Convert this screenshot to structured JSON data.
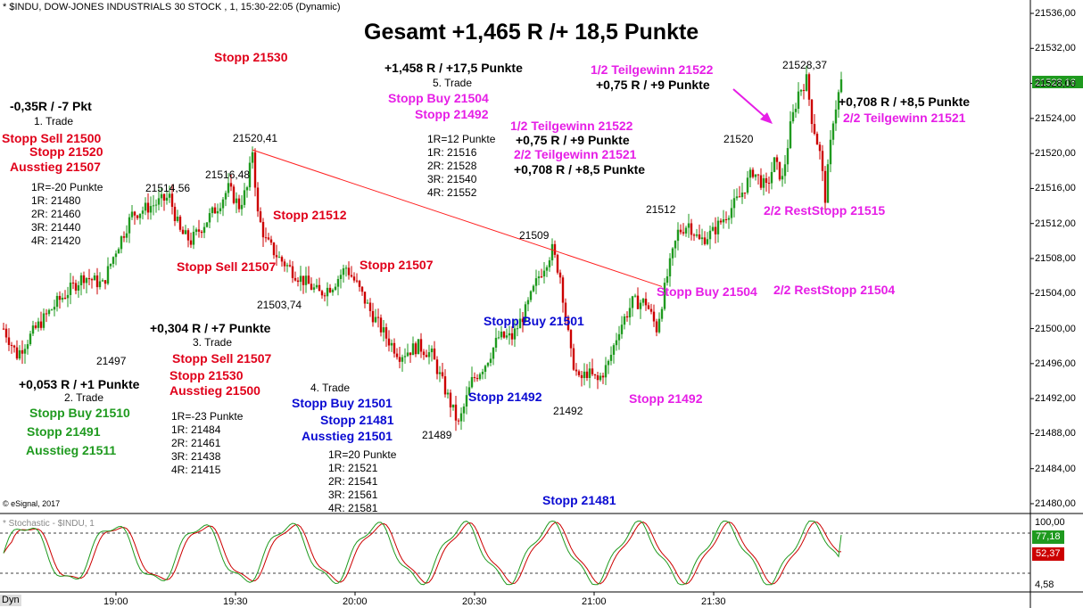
{
  "header": {
    "title": "* $INDU, DOW-JONES INDUSTRIALS 30 STOCK , 1, 15:30-22:05 (Dynamic)",
    "headline": "Gesamt +1,465 R /+ 18,5 Punkte",
    "copyright": "© eSignal, 2017",
    "stoch_title": "* Stochastic - $INDU, 1",
    "dyn_tab": "Dyn"
  },
  "colors": {
    "bull_candle": "#1f9a1f",
    "bear_candle": "#cc0000",
    "stoch_k": "#1f9a1f",
    "stoch_d": "#cc0000",
    "trendline": "#ff2020",
    "price_tag": "#1f9a1f",
    "stoch_k_tag": "#1f9a1f",
    "stoch_d_tag": "#cc0000",
    "arrow": "#e61ee6"
  },
  "chart_data": [
    {
      "type": "candlestick",
      "y_axis_ticks": [
        "21536,00",
        "21532,00",
        "21528,00",
        "21524,00",
        "21520,00",
        "21516,00",
        "21512,00",
        "21508,00",
        "21504,00",
        "21500,00",
        "21496,00",
        "21492,00",
        "21488,00",
        "21484,00",
        "21480,00"
      ],
      "ylim": [
        21479,
        21537
      ],
      "x_axis_ticks": [
        "19:00",
        "19:30",
        "20:00",
        "20:30",
        "21:00",
        "21:30"
      ],
      "last_price_label": "21528,16",
      "price_path": [
        [
          0,
          21500
        ],
        [
          5,
          21497
        ],
        [
          12,
          21500
        ],
        [
          20,
          21503
        ],
        [
          30,
          21506
        ],
        [
          37,
          21505
        ],
        [
          42,
          21509
        ],
        [
          48,
          21513
        ],
        [
          55,
          21514
        ],
        [
          62,
          21515
        ],
        [
          66,
          21511
        ],
        [
          70,
          21510
        ],
        [
          75,
          21512
        ],
        [
          80,
          21514
        ],
        [
          84,
          21516
        ],
        [
          88,
          21514
        ],
        [
          91,
          21516
        ],
        [
          93,
          21520.4
        ],
        [
          95,
          21513
        ],
        [
          98,
          21510
        ],
        [
          103,
          21508
        ],
        [
          110,
          21506
        ],
        [
          118,
          21504
        ],
        [
          123,
          21505
        ],
        [
          128,
          21507
        ],
        [
          132,
          21505
        ],
        [
          137,
          21502
        ],
        [
          143,
          21499
        ],
        [
          148,
          21497
        ],
        [
          155,
          21498
        ],
        [
          160,
          21497
        ],
        [
          165,
          21493
        ],
        [
          170,
          21489
        ],
        [
          175,
          21494
        ],
        [
          180,
          21496
        ],
        [
          185,
          21499
        ],
        [
          190,
          21499
        ],
        [
          195,
          21502
        ],
        [
          200,
          21506
        ],
        [
          205,
          21509
        ],
        [
          208,
          21506
        ],
        [
          212,
          21497
        ],
        [
          215,
          21494
        ],
        [
          218,
          21495
        ],
        [
          222,
          21494
        ],
        [
          226,
          21496
        ],
        [
          230,
          21500
        ],
        [
          235,
          21503
        ],
        [
          240,
          21503
        ],
        [
          244,
          21500
        ],
        [
          248,
          21506
        ],
        [
          252,
          21511
        ],
        [
          256,
          21512
        ],
        [
          260,
          21510
        ],
        [
          265,
          21511
        ],
        [
          270,
          21513
        ],
        [
          275,
          21515
        ],
        [
          280,
          21518
        ],
        [
          285,
          21516
        ],
        [
          288,
          21519
        ],
        [
          291,
          21517
        ],
        [
          294,
          21523
        ],
        [
          297,
          21527
        ],
        [
          300,
          21528.4
        ],
        [
          302,
          21524
        ],
        [
          305,
          21520
        ],
        [
          307,
          21515
        ],
        [
          310,
          21524
        ],
        [
          313,
          21528.2
        ]
      ],
      "trendline": {
        "from": [
          93,
          21520.41
        ],
        "to": [
          246,
          21504.8
        ]
      },
      "annotations": {
        "price_labels": [
          "21520,41",
          "21516,48",
          "21514,56",
          "21503,74",
          "21497",
          "21489",
          "21509",
          "21492",
          "21512",
          "21520",
          "21528,37"
        ]
      }
    },
    {
      "type": "line",
      "name": "Stochastic",
      "y_axis_ticks": [
        "100,00",
        "77,18",
        "52,37",
        "4,58"
      ],
      "ylim": [
        0,
        100
      ],
      "series": [
        {
          "name": "%K",
          "last_value": "77,18"
        },
        {
          "name": "%D",
          "last_value": "52,37"
        }
      ],
      "levels": [
        80,
        20
      ]
    }
  ],
  "notes": {
    "t1_result": "-0,35R / -7 Pkt",
    "t1_label": "1. Trade",
    "t1_stopp_sell": "Stopp Sell 21500",
    "t1_stopp": "Stopp 21520",
    "t1_ausstieg": "Ausstieg 21507",
    "t1_r1": "1R=-20 Punkte",
    "t1_r1v": "1R: 21480",
    "t1_r2": "2R: 21460",
    "t1_r3": "3R: 21440",
    "t1_r4": "4R: 21420",
    "t2_result": "+0,053 R / +1 Punkte",
    "t2_label": "2. Trade",
    "t2_stopp_buy": "Stopp Buy 21510",
    "t2_stopp": "Stopp 21491",
    "t2_ausstieg": "Ausstieg 21511",
    "t3_result": "+0,304 R / +7 Punkte",
    "t3_label": "3. Trade",
    "t3_stopp_sell": "Stopp Sell 21507",
    "t3_stopp": "Stopp 21530",
    "t3_ausstieg": "Ausstieg 21500",
    "t3_r1": "1R=-23 Punkte",
    "t3_r1v": "1R: 21484",
    "t3_r2": "2R: 21461",
    "t3_r3": "3R: 21438",
    "t3_r4": "4R: 21415",
    "t4_label": "4. Trade",
    "t4_stopp_buy": "Stopp Buy 21501",
    "t4_stopp": "Stopp 21481",
    "t4_ausstieg": "Ausstieg 21501",
    "t4_r1": "1R=20 Punkte",
    "t4_r1v": "1R: 21521",
    "t4_r2": "2R: 21541",
    "t4_r3": "3R: 21561",
    "t4_r4": "4R: 21581",
    "stopp_21530_top": "Stopp 21530",
    "stopp_21512": "Stopp 21512",
    "stopp_sell_21507": "Stopp Sell 21507",
    "stopp_21507": "Stopp 21507",
    "t5_result": "+1,458 R / +17,5 Punkte",
    "t5_label": "5. Trade",
    "t5_stopp_buy": "Stopp Buy 21504",
    "t5_stopp": "Stopp 21492",
    "t5_r1": "1R=12 Punkte",
    "t5_r1v": "1R: 21516",
    "t5_r2": "2R: 21528",
    "t5_r3": "3R: 21540",
    "t5_r4": "4R: 21552",
    "tg1": "1/2 Teilgewinn 21522",
    "tg1_res": "+0,75 R / +9 Punkte",
    "tg2": "2/2 Teilgewinn 21521",
    "tg2_res": "+0,708 R / +8,5 Punkte",
    "stopp_buy_21501_mid": "Stopp Buy 21501",
    "stopp_21492_mid": "Stopp 21492",
    "stopp_21481_bottom": "Stopp 21481",
    "stopp_buy_21504_right": "Stopp Buy 21504",
    "stopp_21492_right": "Stopp 21492",
    "reststopp_21504": "2/2 RestStopp 21504",
    "reststopp_21515": "2/2 RestStopp 21515",
    "tg1_right": "1/2 Teilgewinn 21522",
    "tg1_res_right": "+0,75 R / +9 Punkte",
    "tg2_res_right": "+0,708 R / +8,5 Punkte",
    "tg2_right": "2/2 Teilgewinn 21521"
  }
}
